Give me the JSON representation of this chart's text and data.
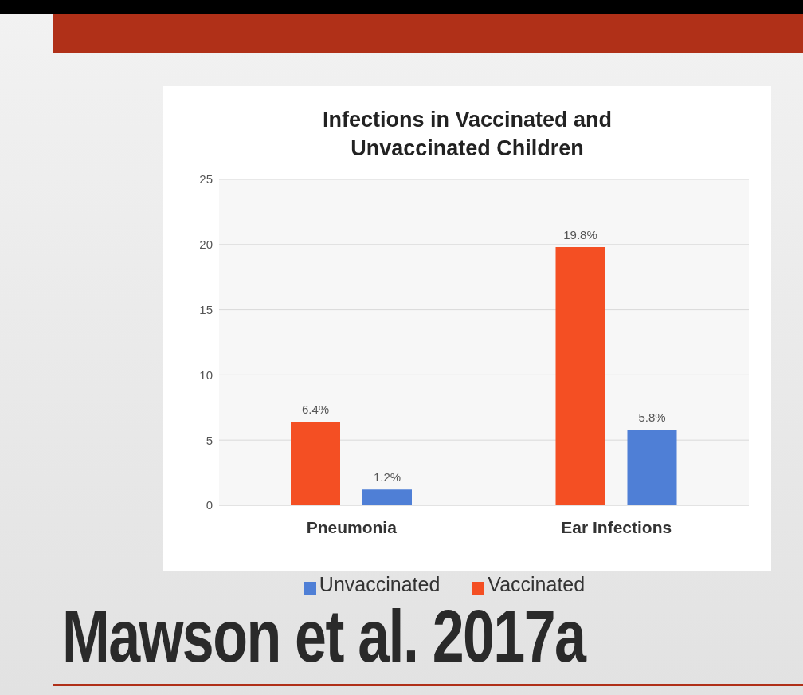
{
  "chart_data": {
    "type": "bar",
    "title": "Infections in Vaccinated and Unvaccinated Children",
    "categories": [
      "Pneumonia",
      "Ear Infections"
    ],
    "series": [
      {
        "name": "Vaccinated",
        "color": "#f44f23",
        "values": [
          6.4,
          19.8
        ],
        "value_labels": [
          "6.4%",
          "19.8%"
        ]
      },
      {
        "name": "Unvaccinated",
        "color": "#4f7fd6",
        "values": [
          1.2,
          5.8
        ],
        "value_labels": [
          "1.2%",
          "5.8%"
        ]
      }
    ],
    "ylim": [
      0,
      25
    ],
    "yticks": [
      0,
      5,
      10,
      15,
      20,
      25
    ],
    "grid": "y",
    "legend": "bottom",
    "annotations": [
      "Mawson et al. 2017a"
    ]
  }
}
